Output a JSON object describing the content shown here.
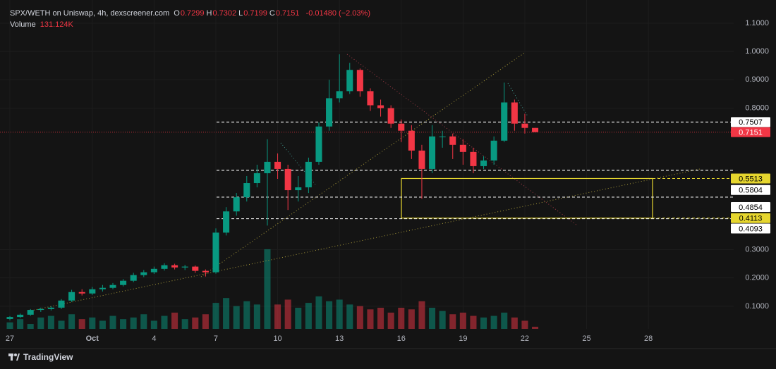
{
  "header": {
    "symbol": "SPX/WETH on Uniswap, 4h, dexscreener.com",
    "ohlc": [
      {
        "key": "O",
        "value": "0.7299"
      },
      {
        "key": "H",
        "value": "0.7302"
      },
      {
        "key": "L",
        "value": "0.7199"
      },
      {
        "key": "C",
        "value": "0.7151"
      }
    ],
    "change": "-0.01480 (−2.03%)",
    "volume_key": "Volume",
    "volume": "131.124K"
  },
  "chart_data": {
    "type": "candlestick",
    "up_color": "#089981",
    "down_color": "#f23645",
    "x": [
      0,
      0.5,
      1,
      1.5,
      2,
      2.5,
      3,
      3.5,
      4,
      4.5,
      5,
      5.5,
      6,
      6.5,
      7,
      7.5,
      8,
      8.5,
      9,
      9.5,
      10,
      10.5,
      11,
      11.5,
      12,
      12.5,
      13,
      13.5,
      14,
      14.5,
      15,
      15.5,
      16,
      16.5,
      17,
      17.5,
      18,
      18.5,
      19,
      19.5,
      20,
      20.5,
      21,
      21.5,
      22,
      22.5,
      23,
      23.5,
      24,
      24.5,
      25,
      25.5
    ],
    "open": [
      0.055,
      0.062,
      0.07,
      0.087,
      0.09,
      0.095,
      0.12,
      0.15,
      0.145,
      0.16,
      0.165,
      0.175,
      0.19,
      0.21,
      0.22,
      0.232,
      0.245,
      0.237,
      0.24,
      0.225,
      0.22,
      0.36,
      0.435,
      0.485,
      0.535,
      0.57,
      0.61,
      0.585,
      0.51,
      0.52,
      0.61,
      0.735,
      0.835,
      0.86,
      0.935,
      0.86,
      0.81,
      0.8,
      0.745,
      0.72,
      0.65,
      0.585,
      0.7,
      0.7,
      0.67,
      0.645,
      0.595,
      0.615,
      0.685,
      0.82,
      0.745,
      0.7299
    ],
    "high": [
      0.065,
      0.074,
      0.09,
      0.095,
      0.1,
      0.125,
      0.158,
      0.16,
      0.168,
      0.175,
      0.182,
      0.196,
      0.218,
      0.228,
      0.24,
      0.252,
      0.25,
      0.246,
      0.244,
      0.23,
      0.375,
      0.45,
      0.5,
      0.56,
      0.6,
      0.69,
      0.64,
      0.6,
      0.56,
      0.625,
      0.75,
      0.9,
      0.99,
      0.96,
      0.94,
      0.87,
      0.83,
      0.81,
      0.76,
      0.74,
      0.67,
      0.74,
      0.72,
      0.71,
      0.69,
      0.66,
      0.63,
      0.7,
      0.89,
      0.83,
      0.78,
      0.7302
    ],
    "low": [
      0.05,
      0.058,
      0.066,
      0.08,
      0.085,
      0.09,
      0.115,
      0.138,
      0.14,
      0.152,
      0.16,
      0.17,
      0.185,
      0.203,
      0.214,
      0.226,
      0.23,
      0.228,
      0.218,
      0.205,
      0.215,
      0.35,
      0.42,
      0.47,
      0.52,
      0.385,
      0.55,
      0.44,
      0.47,
      0.5,
      0.6,
      0.72,
      0.82,
      0.85,
      0.84,
      0.79,
      0.77,
      0.73,
      0.68,
      0.62,
      0.48,
      0.57,
      0.66,
      0.62,
      0.6,
      0.57,
      0.585,
      0.6,
      0.68,
      0.72,
      0.71,
      0.7199
    ],
    "close": [
      0.062,
      0.07,
      0.087,
      0.09,
      0.095,
      0.12,
      0.15,
      0.145,
      0.16,
      0.165,
      0.175,
      0.19,
      0.21,
      0.22,
      0.232,
      0.245,
      0.237,
      0.24,
      0.225,
      0.22,
      0.36,
      0.435,
      0.485,
      0.535,
      0.57,
      0.61,
      0.585,
      0.51,
      0.52,
      0.61,
      0.735,
      0.835,
      0.86,
      0.935,
      0.86,
      0.81,
      0.8,
      0.745,
      0.72,
      0.65,
      0.585,
      0.7,
      0.7,
      0.67,
      0.645,
      0.595,
      0.615,
      0.685,
      0.82,
      0.745,
      0.73,
      0.7151
    ],
    "volume": [
      400,
      600,
      300,
      700,
      800,
      500,
      900,
      600,
      700,
      500,
      800,
      600,
      700,
      900,
      500,
      800,
      1000,
      600,
      700,
      900,
      1600,
      1900,
      1400,
      1700,
      1500,
      4900,
      1500,
      1800,
      1300,
      1600,
      2000,
      1700,
      1800,
      1500,
      1400,
      1200,
      1300,
      1000,
      1300,
      1200,
      1700,
      1300,
      1100,
      900,
      1000,
      800,
      700,
      800,
      1000,
      700,
      500,
      131.124
    ],
    "vlim": [
      0,
      5200
    ],
    "xlim": [
      -0.48,
      35.14
    ],
    "xticks": [
      {
        "value": 0,
        "label": "27"
      },
      {
        "value": 4,
        "label": "Oct"
      },
      {
        "value": 7,
        "label": "4"
      },
      {
        "value": 10,
        "label": "7"
      },
      {
        "value": 13,
        "label": "10"
      },
      {
        "value": 16,
        "label": "13"
      },
      {
        "value": 19,
        "label": "16"
      },
      {
        "value": 22,
        "label": "19"
      },
      {
        "value": 25,
        "label": "22"
      },
      {
        "value": 28,
        "label": "25"
      },
      {
        "value": 31,
        "label": "28"
      }
    ],
    "ylim": [
      0.02,
      1.182
    ],
    "yticks": [
      {
        "value": 0.1,
        "label": "0.1000"
      },
      {
        "value": 0.2,
        "label": "0.2000"
      },
      {
        "value": 0.3,
        "label": "0.3000"
      },
      {
        "value": 0.8,
        "label": "0.8000"
      },
      {
        "value": 0.9,
        "label": "0.9000"
      },
      {
        "value": 1,
        "label": "1.0000"
      },
      {
        "value": 1.1,
        "label": "1.1000"
      }
    ],
    "grid": true,
    "zone": {
      "top": 0.5513,
      "bottom": 0.4113,
      "color": "#e6d62e"
    },
    "price_lines": [
      {
        "value": 0.7507,
        "color": "#ffffff",
        "style": "dashed"
      },
      {
        "value": 0.7151,
        "color": "#f23645",
        "style": "dotted"
      },
      {
        "value": 0.5804,
        "color": "#ffffff",
        "style": "dashed"
      },
      {
        "value": 0.4854,
        "color": "#ffffff",
        "style": "dashed"
      },
      {
        "value": 0.4093,
        "color": "#ffffff",
        "style": "dashed"
      }
    ]
  },
  "footer": {
    "brand": "TradingView"
  }
}
